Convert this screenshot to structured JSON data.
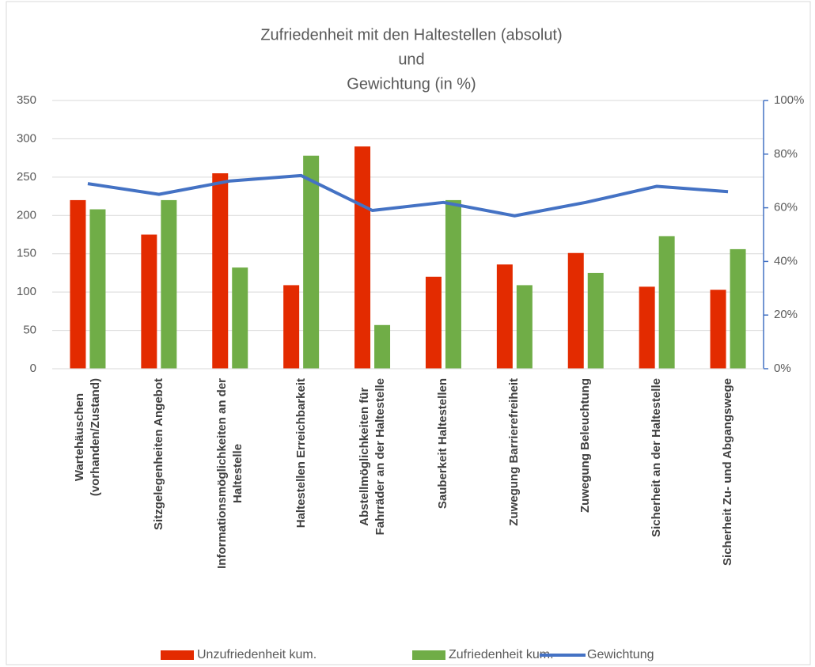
{
  "chart_data": {
    "type": "bar",
    "title": [
      "Zufriedenheit mit den Haltestellen (absolut)",
      "und",
      "Gewichtung (in %)"
    ],
    "categories": [
      "Wartehäuschen\n(vorhanden/Zustand)",
      "Sitzgelegenheiten Angebot",
      "Informationsmöglichkeiten an der\nHaltestelle",
      "Haltestellen Erreichbarkeit",
      "Abstellmöglichkeiten für\nFahrräder an der Haltestelle",
      "Sauberkeit Haltestellen",
      "Zuwegung Barrierefreiheit",
      "Zuwegung Beleuchtung",
      "Sicherheit an der Haltestelle",
      "Sicherheit Zu- und Abgangswege"
    ],
    "series": [
      {
        "name": "Unzufriedenheit kum.",
        "type": "bar",
        "color": "#e32b00",
        "values": [
          220,
          175,
          255,
          109,
          290,
          120,
          136,
          151,
          107,
          103
        ]
      },
      {
        "name": "Zufriedenheit kum.",
        "type": "bar",
        "color": "#70ad47",
        "values": [
          208,
          220,
          132,
          278,
          57,
          220,
          109,
          125,
          173,
          156
        ]
      },
      {
        "name": "Gewichtung",
        "type": "line",
        "axis": "y2",
        "color": "#4472c4",
        "values": [
          69,
          65,
          70,
          72,
          59,
          62,
          57,
          62,
          68,
          66
        ]
      }
    ],
    "ylim": [
      0,
      350
    ],
    "yticks": [
      0,
      50,
      100,
      150,
      200,
      250,
      300,
      350
    ],
    "y2lim": [
      0,
      100
    ],
    "y2ticks": [
      {
        "value": 0,
        "label": "0%"
      },
      {
        "value": 20,
        "label": "20%"
      },
      {
        "value": 40,
        "label": "40%"
      },
      {
        "value": 60,
        "label": "60%"
      },
      {
        "value": 80,
        "label": "80%"
      },
      {
        "value": 100,
        "label": "100%"
      }
    ],
    "legend": "bottom"
  }
}
